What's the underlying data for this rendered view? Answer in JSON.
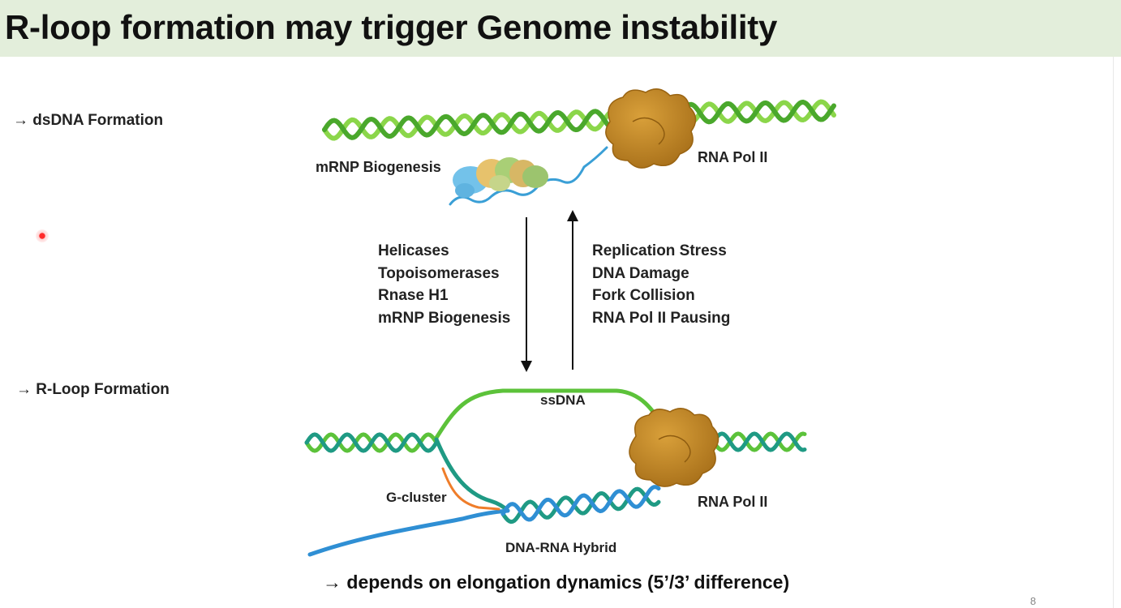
{
  "slide": {
    "title": "R-loop formation may trigger Genome instability",
    "page_number": "8"
  },
  "bullets": {
    "dsdna": "→ dsDNA Formation",
    "rloop": "→ R-Loop Formation"
  },
  "top_diagram": {
    "mrnp_label": "mRNP Biogenesis",
    "polii_label": "RNA Pol II"
  },
  "down_list": [
    "Helicases",
    "Topoisomerases",
    "Rnase H1",
    "mRNP Biogenesis"
  ],
  "up_list": [
    "Replication Stress",
    "DNA Damage",
    "Fork Collision",
    "RNA Pol II Pausing"
  ],
  "bottom_diagram": {
    "ssdna_label": "ssDNA",
    "gcluster_label": "G-cluster",
    "hybrid_label": "DNA-RNA Hybrid",
    "polii_label": "RNA Pol II"
  },
  "footer": "→ depends on elongation dynamics (5’/3’ difference)",
  "colors": {
    "title_bar": "#e3eedb",
    "dna_green": "#6cc43a",
    "dna_teal": "#1f9a84",
    "rna_blue": "#2f8fd4",
    "pol_ii": "#c2851d",
    "g_cluster": "#ef7d2a"
  }
}
